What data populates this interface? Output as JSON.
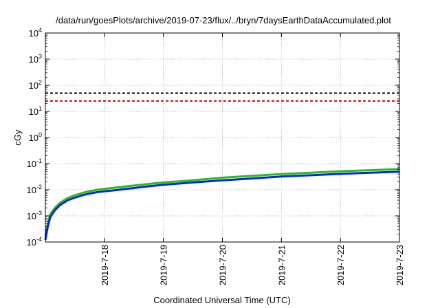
{
  "chart_data": {
    "type": "line",
    "title": "/data/run/goesPlots/archive/2019-07-23/flux/../bryn/7daysEarthDataAccumulated.plot",
    "xlabel": "Coordinated Universal Time (UTC)",
    "ylabel": "cGy",
    "y_scale": "log",
    "ylim": [
      0.0001,
      10000
    ],
    "y_ticks": [
      {
        "value": 0.0001,
        "base": "10",
        "exp": "-4"
      },
      {
        "value": 0.001,
        "base": "10",
        "exp": "-3"
      },
      {
        "value": 0.01,
        "base": "10",
        "exp": "-2"
      },
      {
        "value": 0.1,
        "base": "10",
        "exp": "-1"
      },
      {
        "value": 1,
        "base": "10",
        "exp": "0"
      },
      {
        "value": 10,
        "base": "10",
        "exp": "1"
      },
      {
        "value": 100,
        "base": "10",
        "exp": "2"
      },
      {
        "value": 1000,
        "base": "10",
        "exp": "3"
      },
      {
        "value": 10000,
        "base": "10",
        "exp": "4"
      }
    ],
    "xlim": [
      "2019-07-17T00:00",
      "2019-07-23T00:00"
    ],
    "x_ticks": [
      "2019-7-18",
      "2019-7-19",
      "2019-7-20",
      "2019-7-21",
      "2019-7-22",
      "2019-7-23"
    ],
    "grid": true,
    "thresholds": [
      {
        "value": 50,
        "color": "#000000",
        "style": "dashed"
      },
      {
        "value": 25,
        "color": "#e00000",
        "style": "dashed"
      }
    ],
    "series": [
      {
        "color": "#20c020",
        "x": [
          "2019-07-17T00:00",
          "2019-07-17T01:00",
          "2019-07-17T02:00",
          "2019-07-17T04:00",
          "2019-07-17T06:00",
          "2019-07-17T09:00",
          "2019-07-17T12:00",
          "2019-07-17T16:00",
          "2019-07-17T21:00",
          "2019-07-18T06:00",
          "2019-07-18T16:00",
          "2019-07-19T00:00",
          "2019-07-19T12:00",
          "2019-07-20T00:00",
          "2019-07-20T12:00",
          "2019-07-21T00:00",
          "2019-07-21T12:00",
          "2019-07-22T00:00",
          "2019-07-22T12:00",
          "2019-07-23T00:00"
        ],
        "values": [
          0.00016,
          0.0005,
          0.0012,
          0.0021,
          0.0032,
          0.0048,
          0.0062,
          0.008,
          0.01,
          0.0125,
          0.016,
          0.019,
          0.023,
          0.029,
          0.034,
          0.04,
          0.045,
          0.051,
          0.056,
          0.062
        ]
      },
      {
        "color": "#1020e0",
        "x": [
          "2019-07-17T00:00",
          "2019-07-17T01:00",
          "2019-07-17T02:00",
          "2019-07-17T04:00",
          "2019-07-17T06:00",
          "2019-07-17T09:00",
          "2019-07-17T12:00",
          "2019-07-17T16:00",
          "2019-07-17T21:00",
          "2019-07-18T06:00",
          "2019-07-18T16:00",
          "2019-07-19T00:00",
          "2019-07-19T12:00",
          "2019-07-20T00:00",
          "2019-07-20T12:00",
          "2019-07-21T00:00",
          "2019-07-21T12:00",
          "2019-07-22T00:00",
          "2019-07-22T12:00",
          "2019-07-23T00:00"
        ],
        "values": [
          0.00012,
          0.0004,
          0.0009,
          0.0017,
          0.0026,
          0.0039,
          0.005,
          0.0065,
          0.0081,
          0.01,
          0.013,
          0.0155,
          0.019,
          0.023,
          0.027,
          0.032,
          0.036,
          0.0405,
          0.045,
          0.049
        ]
      }
    ]
  }
}
